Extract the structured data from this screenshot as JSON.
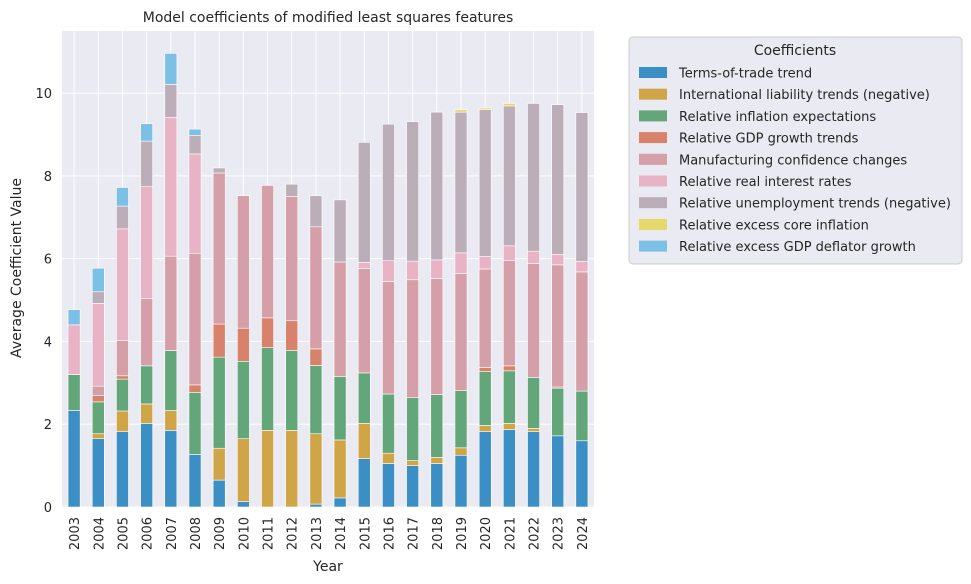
{
  "chart_data": {
    "type": "bar",
    "stacked": true,
    "title": "Model coefficients of modified least squares features",
    "xlabel": "Year",
    "ylabel": "Average Coefficient Value",
    "ylim": [
      0,
      11.5
    ],
    "yticks": [
      0,
      2,
      4,
      6,
      8,
      10
    ],
    "grid": true,
    "legend_title": "Coefficients",
    "legend_position": "outside-right",
    "categories": [
      "2003",
      "2004",
      "2005",
      "2006",
      "2007",
      "2008",
      "2009",
      "2010",
      "2011",
      "2012",
      "2013",
      "2014",
      "2015",
      "2016",
      "2017",
      "2018",
      "2019",
      "2020",
      "2021",
      "2022",
      "2023",
      "2024"
    ],
    "series": [
      {
        "name": "Terms-of-trade trend",
        "color": "#3b8fc4",
        "values": [
          2.33,
          1.65,
          1.82,
          2.02,
          1.85,
          1.27,
          0.65,
          0.13,
          0.0,
          0.0,
          0.07,
          0.22,
          1.17,
          1.05,
          1.0,
          1.05,
          1.25,
          1.82,
          1.87,
          1.82,
          1.72,
          1.6
        ]
      },
      {
        "name": "International liability trends (negative)",
        "color": "#d0a548",
        "values": [
          0.0,
          0.12,
          0.5,
          0.47,
          0.48,
          0.0,
          0.77,
          1.52,
          1.85,
          1.85,
          1.7,
          1.4,
          0.85,
          0.25,
          0.12,
          0.15,
          0.18,
          0.15,
          0.15,
          0.08,
          0.0,
          0.0
        ]
      },
      {
        "name": "Relative inflation expectations",
        "color": "#63a67a",
        "values": [
          0.87,
          0.77,
          0.77,
          0.92,
          1.45,
          1.5,
          2.2,
          1.87,
          2.0,
          1.93,
          1.65,
          1.53,
          1.22,
          1.43,
          1.52,
          1.52,
          1.38,
          1.3,
          1.27,
          1.23,
          1.15,
          1.2
        ]
      },
      {
        "name": "Relative GDP growth trends",
        "color": "#d8826c",
        "values": [
          0.0,
          0.15,
          0.08,
          0.0,
          0.0,
          0.18,
          0.8,
          0.8,
          0.72,
          0.72,
          0.4,
          0.0,
          0.0,
          0.0,
          0.0,
          0.0,
          0.0,
          0.1,
          0.12,
          0.0,
          0.03,
          0.0
        ]
      },
      {
        "name": "Manufacturing confidence changes",
        "color": "#d49fa6",
        "values": [
          0.0,
          0.23,
          0.85,
          1.63,
          2.28,
          3.18,
          3.65,
          3.2,
          3.2,
          3.0,
          2.95,
          2.77,
          2.52,
          2.72,
          2.85,
          2.8,
          2.83,
          2.38,
          2.55,
          2.75,
          2.95,
          2.88
        ]
      },
      {
        "name": "Relative real interest rates",
        "color": "#e8b3c4",
        "values": [
          1.2,
          2.0,
          2.7,
          2.7,
          3.35,
          2.4,
          0.0,
          0.0,
          0.0,
          0.0,
          0.0,
          0.0,
          0.15,
          0.5,
          0.45,
          0.45,
          0.5,
          0.3,
          0.35,
          0.3,
          0.25,
          0.25
        ]
      },
      {
        "name": "Relative unemployment trends (negative)",
        "color": "#bbaeb8",
        "values": [
          0.0,
          0.28,
          0.55,
          1.1,
          0.8,
          0.45,
          0.12,
          0.0,
          0.0,
          0.3,
          0.75,
          1.5,
          2.9,
          3.3,
          3.37,
          3.57,
          3.4,
          3.55,
          3.38,
          3.57,
          3.62,
          3.6
        ]
      },
      {
        "name": "Relative excess core inflation",
        "color": "#e4d96a",
        "values": [
          0.0,
          0.0,
          0.0,
          0.0,
          0.0,
          0.0,
          0.0,
          0.0,
          0.0,
          0.0,
          0.0,
          0.0,
          0.0,
          0.0,
          0.0,
          0.0,
          0.06,
          0.04,
          0.06,
          0.0,
          0.0,
          0.0
        ]
      },
      {
        "name": "Relative excess GDP deflator growth",
        "color": "#7cc0e6",
        "values": [
          0.37,
          0.57,
          0.45,
          0.42,
          0.75,
          0.15,
          0.0,
          0.0,
          0.0,
          0.0,
          0.0,
          0.0,
          0.0,
          0.0,
          0.0,
          0.0,
          0.0,
          0.0,
          0.0,
          0.0,
          0.0,
          0.0
        ]
      }
    ]
  }
}
